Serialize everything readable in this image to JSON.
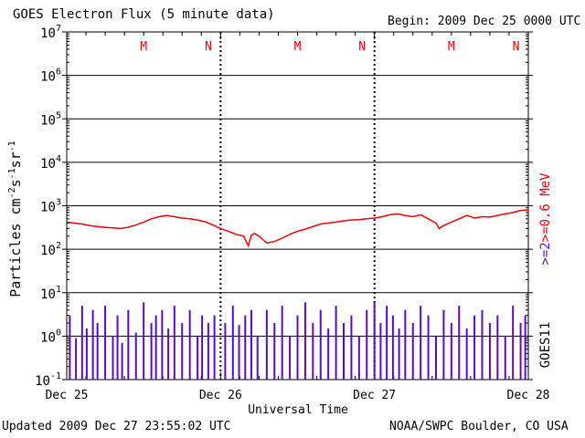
{
  "chart_data": {
    "type": "line",
    "title": "GOES Electron Flux (5 minute data)",
    "begin": "Begin: 2009 Dec 25 0000 UTC",
    "xlabel": "Universal Time",
    "ylabel_text": "Particles cm",
    "ylabel_sup1": "-2",
    "ylabel_mid1": "s",
    "ylabel_sup2": "-1",
    "ylabel_mid2": "sr",
    "ylabel_sup3": "-1",
    "x_ticks": [
      "Dec 25",
      "Dec 26",
      "Dec 27",
      "Dec 28"
    ],
    "y_scale": "log",
    "ylim": [
      0.1,
      10000000
    ],
    "y_ticks": [
      {
        "base": "10",
        "exp": "7",
        "value": 10000000
      },
      {
        "base": "10",
        "exp": "6",
        "value": 1000000
      },
      {
        "base": "10",
        "exp": "5",
        "value": 100000
      },
      {
        "base": "10",
        "exp": "4",
        "value": 10000
      },
      {
        "base": "10",
        "exp": "3",
        "value": 1000
      },
      {
        "base": "10",
        "exp": "2",
        "value": 100
      },
      {
        "base": "10",
        "exp": "1",
        "value": 10
      },
      {
        "base": "10",
        "exp": "0",
        "value": 1
      },
      {
        "base": "10",
        "exp": "-1",
        "value": 0.1
      }
    ],
    "threshold": 1000,
    "markers": [
      {
        "label": "M",
        "day": 0.5
      },
      {
        "label": "N",
        "day": 0.92
      },
      {
        "label": "M",
        "day": 1.5
      },
      {
        "label": "N",
        "day": 1.92
      },
      {
        "label": "M",
        "day": 2.5
      },
      {
        "label": "N",
        "day": 2.92
      }
    ],
    "series": [
      {
        "name": ">=2",
        "suffix_label": ">=0.6 MeV",
        "color": "#e8000b",
        "x_days": [
          0,
          0.05,
          0.1,
          0.15,
          0.2,
          0.25,
          0.3,
          0.35,
          0.4,
          0.45,
          0.5,
          0.55,
          0.6,
          0.65,
          0.7,
          0.75,
          0.8,
          0.85,
          0.9,
          0.95,
          1.0,
          1.05,
          1.1,
          1.15,
          1.18,
          1.2,
          1.22,
          1.25,
          1.3,
          1.35,
          1.4,
          1.45,
          1.5,
          1.55,
          1.6,
          1.65,
          1.7,
          1.75,
          1.8,
          1.85,
          1.9,
          1.95,
          2.0,
          2.05,
          2.1,
          2.15,
          2.2,
          2.25,
          2.3,
          2.35,
          2.4,
          2.42,
          2.45,
          2.5,
          2.55,
          2.6,
          2.65,
          2.7,
          2.75,
          2.8,
          2.85,
          2.9,
          2.95,
          3.0
        ],
        "values": [
          420,
          400,
          380,
          350,
          330,
          320,
          310,
          300,
          320,
          360,
          420,
          500,
          560,
          600,
          560,
          520,
          500,
          470,
          430,
          360,
          300,
          260,
          220,
          200,
          120,
          210,
          230,
          200,
          140,
          150,
          180,
          220,
          260,
          290,
          330,
          380,
          400,
          420,
          450,
          470,
          480,
          500,
          520,
          560,
          620,
          650,
          600,
          560,
          620,
          500,
          400,
          300,
          350,
          420,
          500,
          600,
          520,
          560,
          550,
          600,
          650,
          700,
          780,
          800
        ]
      },
      {
        "name": "GOES11",
        "color": "#5a0fb4",
        "x_days": [
          0.02,
          0.06,
          0.1,
          0.13,
          0.17,
          0.2,
          0.25,
          0.3,
          0.33,
          0.36,
          0.4,
          0.45,
          0.5,
          0.55,
          0.58,
          0.62,
          0.66,
          0.7,
          0.75,
          0.8,
          0.85,
          0.88,
          0.92,
          0.96,
          1.03,
          1.08,
          1.12,
          1.16,
          1.2,
          1.24,
          1.3,
          1.35,
          1.4,
          1.45,
          1.5,
          1.55,
          1.6,
          1.65,
          1.7,
          1.75,
          1.8,
          1.85,
          1.9,
          1.95,
          2.0,
          2.04,
          2.08,
          2.12,
          2.16,
          2.2,
          2.25,
          2.3,
          2.35,
          2.4,
          2.45,
          2.5,
          2.55,
          2.6,
          2.65,
          2.7,
          2.75,
          2.8,
          2.85,
          2.9,
          2.95,
          2.98
        ],
        "values": [
          3,
          0.9,
          5,
          1.5,
          4,
          2,
          5,
          1,
          3,
          0.7,
          4,
          1.2,
          6,
          2,
          3,
          4,
          1.5,
          5,
          2,
          4,
          1,
          3,
          2,
          3,
          2,
          5,
          1.8,
          3,
          4,
          1,
          4,
          2,
          5,
          1,
          3,
          6,
          2,
          4,
          1.5,
          5,
          2,
          3,
          1,
          4,
          6,
          2,
          5,
          3,
          1.5,
          4,
          2,
          5,
          3,
          1,
          4,
          2,
          5,
          1.5,
          3,
          4,
          2,
          3,
          1,
          5,
          2,
          3
        ]
      }
    ],
    "footer_left": "Updated 2009 Dec 27 23:55:02 UTC",
    "footer_right": "NOAA/SWPC Boulder, CO USA"
  }
}
